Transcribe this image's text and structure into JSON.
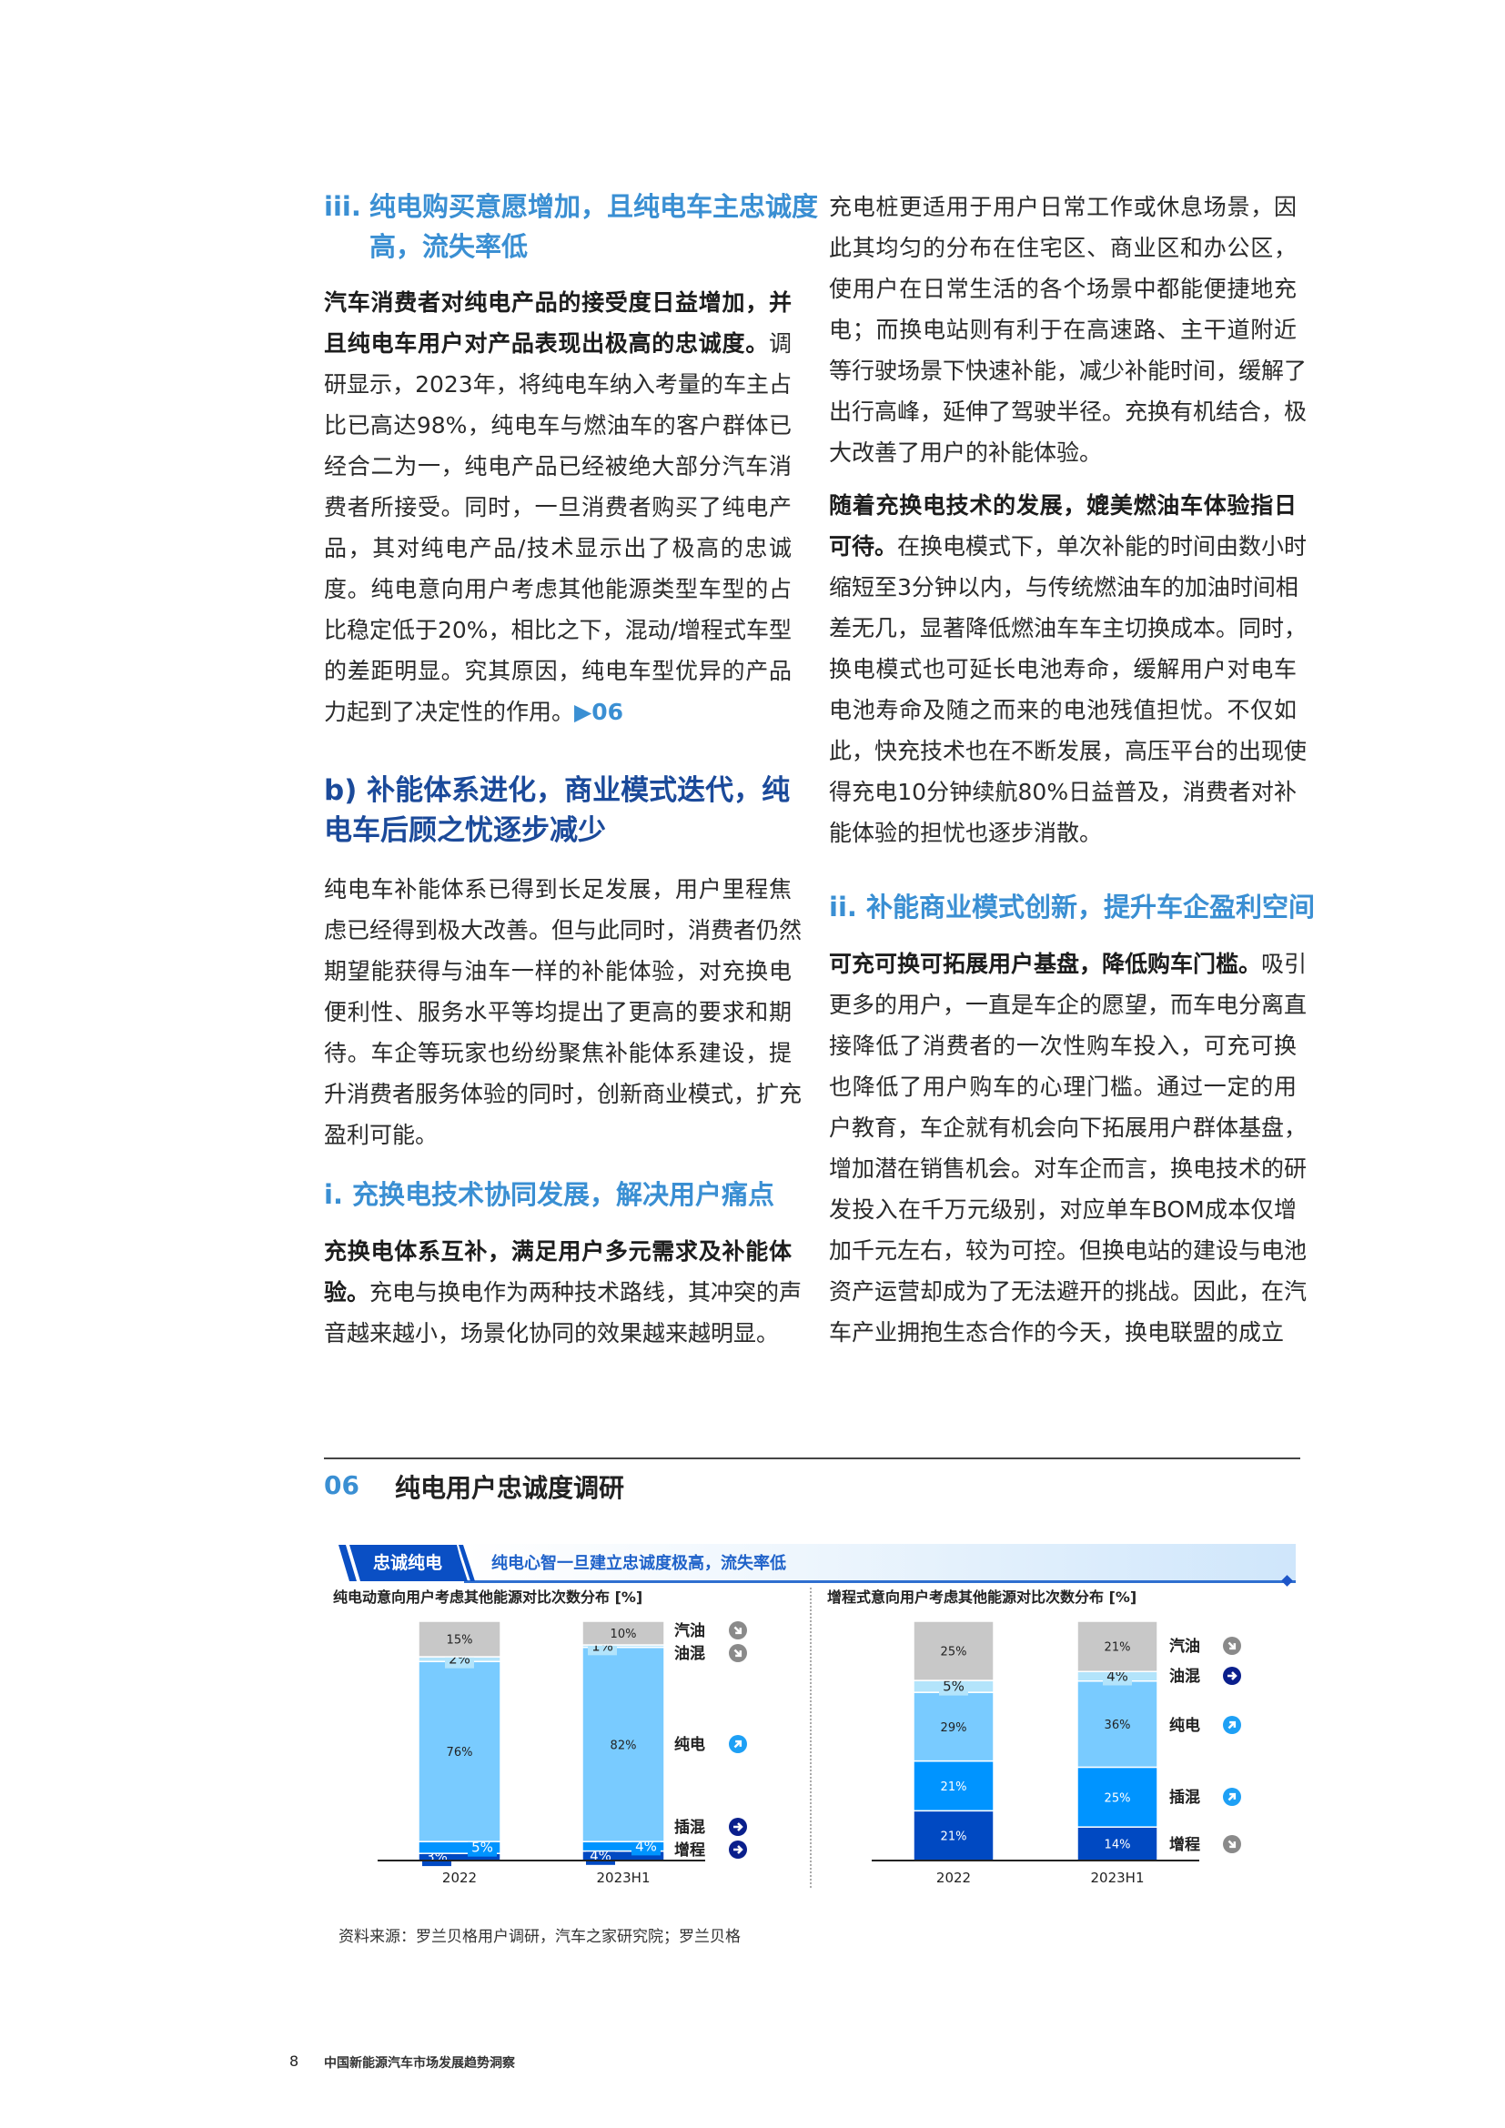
{
  "left_column": {
    "heading_iii": [
      "iii.",
      "纯电购买意愿增加，且纯电车主忠诚度",
      "高，流失率低"
    ],
    "para1": [
      {
        "b": "汽车消费者对纯电产品的接受度日益增加，并",
        "t": ""
      },
      {
        "b": "且纯电车用户对产品表现出极高的忠诚度。",
        "t": "调"
      },
      {
        "b": "",
        "t": "研显示，2023年，将纯电车纳入考量的车主占"
      },
      {
        "b": "",
        "t": "比已高达98%，纯电车与燃油车的客户群体已"
      },
      {
        "b": "",
        "t": "经合二为一，纯电产品已经被绝大部分汽车消"
      },
      {
        "b": "",
        "t": "费者所接受。同时，一旦消费者购买了纯电产"
      },
      {
        "b": "",
        "t": "品，其对纯电产品/技术显示出了极高的忠诚"
      },
      {
        "b": "",
        "t": "度。纯电意向用户考虑其他能源类型车型的占"
      },
      {
        "b": "",
        "t": "比稳定低于20%，相比之下，混动/增程式车型"
      },
      {
        "b": "",
        "t": "的差距明显。究其原因，纯电车型优异的产品"
      },
      {
        "b": "",
        "t": "力起到了决定性的作用。",
        "ref": "▶06"
      }
    ],
    "heading_b": [
      "b) 补能体系进化，商业模式迭代，纯",
      "电车后顾之忧逐步减少"
    ],
    "para2": [
      {
        "b": "",
        "t": "纯电车补能体系已得到长足发展，用户里程焦"
      },
      {
        "b": "",
        "t": "虑已经得到极大改善。但与此同时，消费者仍然"
      },
      {
        "b": "",
        "t": "期望能获得与油车一样的补能体验，对充换电"
      },
      {
        "b": "",
        "t": "便利性、服务水平等均提出了更高的要求和期"
      },
      {
        "b": "",
        "t": "待。车企等玩家也纷纷聚焦补能体系建设，提"
      },
      {
        "b": "",
        "t": "升消费者服务体验的同时，创新商业模式，扩充"
      },
      {
        "b": "",
        "t": "盈利可能。"
      }
    ],
    "heading_i": "i. 充换电技术协同发展，解决用户痛点",
    "para3": [
      {
        "b": "充换电体系互补，满足用户多元需求及补能体",
        "t": ""
      },
      {
        "b": "验。",
        "t": "充电与换电作为两种技术路线，其冲突的声"
      },
      {
        "b": "",
        "t": "音越来越小，场景化协同的效果越来越明显。"
      }
    ]
  },
  "right_column": {
    "para1": [
      {
        "b": "",
        "t": "充电桩更适用于用户日常工作或休息场景，因"
      },
      {
        "b": "",
        "t": "此其均匀的分布在住宅区、商业区和办公区，"
      },
      {
        "b": "",
        "t": "使用户在日常生活的各个场景中都能便捷地充"
      },
      {
        "b": "",
        "t": "电；而换电站则有利于在高速路、主干道附近"
      },
      {
        "b": "",
        "t": "等行驶场景下快速补能，减少补能时间，缓解了"
      },
      {
        "b": "",
        "t": "出行高峰，延伸了驾驶半径。充换有机结合，极"
      },
      {
        "b": "",
        "t": "大改善了用户的补能体验。"
      }
    ],
    "para2": [
      {
        "b": "随着充换电技术的发展，媲美燃油车体验指日",
        "t": ""
      },
      {
        "b": "可待。",
        "t": "在换电模式下，单次补能的时间由数小时"
      },
      {
        "b": "",
        "t": "缩短至3分钟以内，与传统燃油车的加油时间相"
      },
      {
        "b": "",
        "t": "差无几，显著降低燃油车车主切换成本。同时，"
      },
      {
        "b": "",
        "t": "换电模式也可延长电池寿命，缓解用户对电车"
      },
      {
        "b": "",
        "t": "电池寿命及随之而来的电池残值担忧。不仅如"
      },
      {
        "b": "",
        "t": "此，快充技术也在不断发展，高压平台的出现使"
      },
      {
        "b": "",
        "t": "得充电10分钟续航80%日益普及，消费者对补"
      },
      {
        "b": "",
        "t": "能体验的担忧也逐步消散。"
      }
    ],
    "heading_ii": "ii. 补能商业模式创新，提升车企盈利空间",
    "para3": [
      {
        "b": "可充可换可拓展用户基盘，降低购车门槛。",
        "t": "吸引"
      },
      {
        "b": "",
        "t": "更多的用户，一直是车企的愿望，而车电分离直"
      },
      {
        "b": "",
        "t": "接降低了消费者的一次性购车投入，可充可换"
      },
      {
        "b": "",
        "t": "也降低了用户购车的心理门槛。通过一定的用"
      },
      {
        "b": "",
        "t": "户教育，车企就有机会向下拓展用户群体基盘，"
      },
      {
        "b": "",
        "t": "增加潜在销售机会。对车企而言，换电技术的研"
      },
      {
        "b": "",
        "t": "发投入在千万元级别，对应单车BOM成本仅增"
      },
      {
        "b": "",
        "t": "加千元左右，较为可控。但换电站的建设与电池"
      },
      {
        "b": "",
        "t": "资产运营却成为了无法避开的挑战。因此，在汽"
      },
      {
        "b": "",
        "t": "车产业拥抱生态合作的今天，换电联盟的成立"
      }
    ]
  },
  "figure": {
    "number": "06",
    "title": "纯电用户忠诚度调研",
    "tag": "忠诚纯电",
    "tagline": "纯电心智一旦建立忠诚度极高，流失率低",
    "source": "资料来源：罗兰贝格用户调研，汽车之家研究院；罗兰贝格"
  },
  "colors": {
    "汽油": "#c8c8c8",
    "油混": "#b3e4fb",
    "纯电": "#79cbff",
    "插混": "#0094ff",
    "增程": "#0049c2",
    "accent": "#3a8fd3",
    "banner": "#0a4fc4"
  },
  "chart_data": [
    {
      "type": "bar",
      "stacked": true,
      "title": "纯电动意向用户考虑其他能源对比次数分布 [%]",
      "categories": [
        "2022",
        "2023H1"
      ],
      "series": [
        {
          "name": "增程",
          "values": [
            3,
            4
          ],
          "icon": "arrow-right-navy-icon"
        },
        {
          "name": "插混",
          "values": [
            5,
            4
          ],
          "icon": "arrow-right-navy-icon"
        },
        {
          "name": "纯电",
          "values": [
            76,
            82
          ],
          "icon": "arrow-up-right-blue-icon"
        },
        {
          "name": "油混",
          "values": [
            2,
            1
          ],
          "icon": "arrow-down-right-gray-icon"
        },
        {
          "name": "汽油",
          "values": [
            15,
            10
          ],
          "icon": "arrow-down-right-gray-icon"
        }
      ],
      "legend": "right"
    },
    {
      "type": "bar",
      "stacked": true,
      "title": "增程式意向用户考虑其他能源对比次数分布 [%]",
      "categories": [
        "2022",
        "2023H1"
      ],
      "series": [
        {
          "name": "增程",
          "values": [
            21,
            14
          ],
          "icon": "arrow-down-right-gray-icon"
        },
        {
          "name": "插混",
          "values": [
            21,
            25
          ],
          "icon": "arrow-up-right-blue-icon"
        },
        {
          "name": "纯电",
          "values": [
            29,
            36
          ],
          "icon": "arrow-up-right-blue-icon"
        },
        {
          "name": "油混",
          "values": [
            5,
            4
          ],
          "icon": "arrow-right-navy-icon"
        },
        {
          "name": "汽油",
          "values": [
            25,
            21
          ],
          "icon": "arrow-down-right-gray-icon"
        }
      ],
      "legend": "right"
    }
  ],
  "footer": {
    "page": "8",
    "title": "中国新能源汽车市场发展趋势洞察"
  }
}
